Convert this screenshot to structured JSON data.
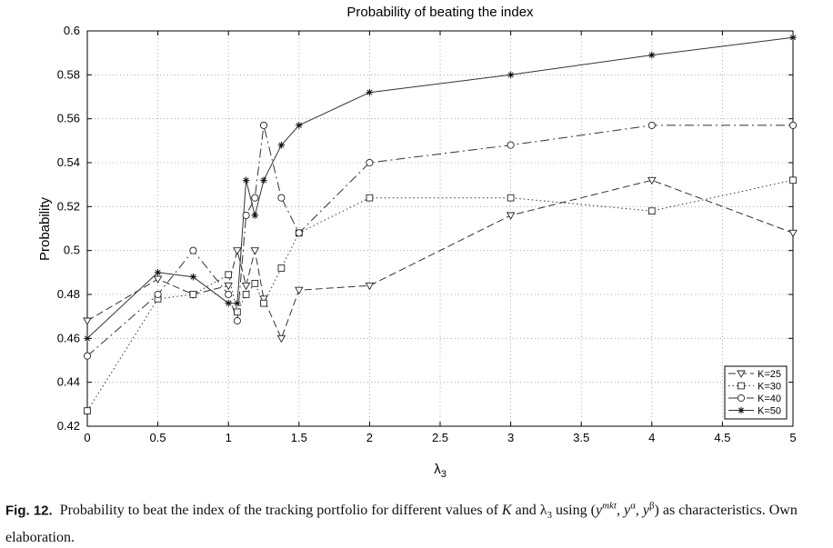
{
  "chart_data": {
    "type": "line",
    "title": "Probability of beating the index",
    "xlabel": "λ3",
    "ylabel": "Probability",
    "xlim": [
      0,
      5
    ],
    "ylim": [
      0.42,
      0.6
    ],
    "x_ticks": [
      0,
      0.5,
      1,
      1.5,
      2,
      2.5,
      3,
      3.5,
      4,
      4.5,
      5
    ],
    "x_tick_labels": [
      "0",
      "0.5",
      "1",
      "1.5",
      "2",
      "2.5",
      "3",
      "3.5",
      "4",
      "4.5",
      "5"
    ],
    "y_ticks": [
      0.42,
      0.44,
      0.46,
      0.48,
      0.5,
      0.52,
      0.54,
      0.56,
      0.58,
      0.6
    ],
    "y_tick_labels": [
      "0.42",
      "0.44",
      "0.46",
      "0.48",
      "0.5",
      "0.52",
      "0.54",
      "0.56",
      "0.58",
      "0.6"
    ],
    "grid": true,
    "legend_position": "bottom-right",
    "x": [
      0,
      0.5,
      0.75,
      1,
      1.0625,
      1.125,
      1.1875,
      1.25,
      1.375,
      1.5,
      2,
      3,
      4,
      5
    ],
    "series": [
      {
        "name": "K=25",
        "marker": "triangle-down",
        "dash": "8,4",
        "values": [
          0.468,
          0.487,
          0.48,
          0.484,
          0.5,
          0.484,
          0.5,
          0.478,
          0.46,
          0.482,
          0.484,
          0.516,
          0.532,
          0.508
        ]
      },
      {
        "name": "K=30",
        "marker": "square",
        "dash": "1.5,3",
        "values": [
          0.427,
          0.478,
          0.48,
          0.489,
          0.472,
          0.48,
          0.485,
          0.476,
          0.492,
          0.508,
          0.524,
          0.524,
          0.518,
          0.532
        ]
      },
      {
        "name": "K=40",
        "marker": "circle",
        "dash": "10,4,2,4",
        "values": [
          0.452,
          0.48,
          0.5,
          0.48,
          0.468,
          0.516,
          0.524,
          0.557,
          0.524,
          0.508,
          0.54,
          0.548,
          0.557,
          0.557
        ]
      },
      {
        "name": "K=50",
        "marker": "star",
        "dash": "",
        "values": [
          0.46,
          0.49,
          0.488,
          0.476,
          0.476,
          0.532,
          0.516,
          0.532,
          0.548,
          0.557,
          0.572,
          0.58,
          0.589,
          0.597
        ]
      }
    ]
  },
  "caption": {
    "label": "Fig. 12.",
    "text": "Probability to beat the index of the tracking portfolio for different values of K and λ3 using (ymkt, yα, yβ) as characteristics. Own elaboration."
  }
}
